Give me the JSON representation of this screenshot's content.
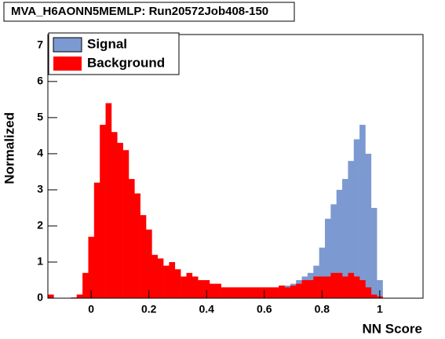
{
  "chart_data": {
    "type": "histogram",
    "title": "MVA_H6AONN5MEMLP: Run20572Job408-150",
    "x_label": "NN Score",
    "y_label": "Normalized",
    "bins": [
      -0.15,
      -0.13,
      -0.11,
      -0.09,
      -0.07,
      -0.05,
      -0.03,
      -0.01,
      0.01,
      0.03,
      0.05,
      0.07,
      0.09,
      0.11,
      0.13,
      0.15,
      0.17,
      0.19,
      0.21,
      0.23,
      0.25,
      0.27,
      0.29,
      0.31,
      0.33,
      0.35,
      0.37,
      0.39,
      0.41,
      0.43,
      0.45,
      0.47,
      0.49,
      0.51,
      0.53,
      0.55,
      0.57,
      0.59,
      0.61,
      0.63,
      0.65,
      0.67,
      0.69,
      0.71,
      0.73,
      0.75,
      0.77,
      0.79,
      0.81,
      0.83,
      0.85,
      0.87,
      0.89,
      0.91,
      0.93,
      0.95,
      0.97,
      0.99,
      1.01,
      1.03,
      1.05,
      1.07,
      1.09,
      1.11,
      1.13,
      1.15
    ],
    "series": [
      {
        "name": "Signal",
        "color": "#7d99d1",
        "values": [
          0,
          0,
          0,
          0,
          0,
          0.1,
          0.1,
          0.1,
          0.1,
          0.1,
          0.1,
          0.1,
          0.1,
          0.1,
          0.1,
          0.1,
          0.1,
          0.1,
          0.1,
          0.1,
          0.1,
          0.1,
          0.1,
          0.1,
          0.1,
          0.1,
          0.1,
          0.1,
          0.1,
          0.1,
          0.1,
          0.25,
          0.25,
          0.25,
          0.25,
          0.25,
          0.25,
          0.25,
          0.25,
          0.25,
          0.35,
          0.35,
          0.4,
          0.5,
          0.6,
          0.7,
          0.9,
          1.4,
          2.2,
          2.6,
          3.0,
          3.3,
          3.8,
          4.4,
          4.8,
          4.0,
          2.5,
          0.5,
          0,
          0,
          0,
          0,
          0,
          0,
          0
        ]
      },
      {
        "name": "Background",
        "color": "#ff0000",
        "values": [
          0.1,
          0,
          0,
          0,
          0.02,
          0.1,
          0.7,
          1.7,
          3.2,
          4.8,
          5.4,
          4.6,
          4.3,
          4.1,
          3.3,
          2.9,
          2.3,
          1.9,
          1.2,
          1.1,
          0.9,
          1.0,
          0.8,
          0.6,
          0.7,
          0.6,
          0.5,
          0.5,
          0.4,
          0.4,
          0.3,
          0.3,
          0.3,
          0.3,
          0.3,
          0.3,
          0.3,
          0.3,
          0.3,
          0.3,
          0.35,
          0.3,
          0.35,
          0.4,
          0.5,
          0.5,
          0.6,
          0.6,
          0.6,
          0.7,
          0.7,
          0.6,
          0.7,
          0.6,
          0.5,
          0.3,
          0.1,
          0.05,
          0,
          0,
          0,
          0,
          0,
          0,
          0
        ]
      }
    ],
    "xlim": [
      -0.15,
      1.15
    ],
    "ylim": [
      0,
      7.3
    ],
    "xticks": [
      0,
      0.2,
      0.4,
      0.6,
      0.8,
      1
    ],
    "yticks": [
      0,
      1,
      2,
      3,
      4,
      5,
      6,
      7
    ],
    "legend": "upper-left"
  }
}
